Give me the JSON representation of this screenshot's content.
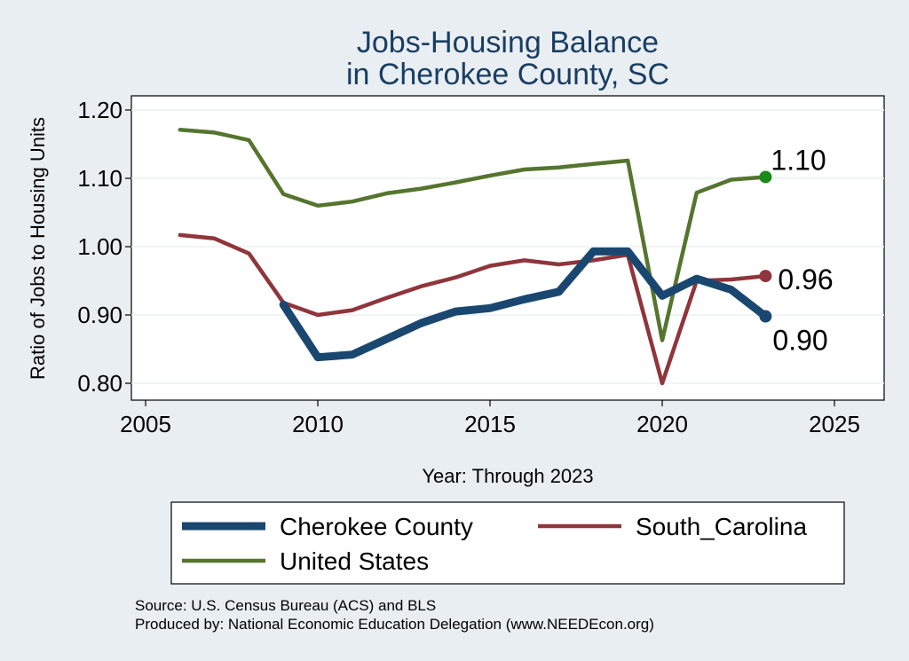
{
  "chart_data": {
    "type": "line",
    "title": [
      "Jobs-Housing Balance",
      "in Cherokee County, SC"
    ],
    "xlabel": "Year: Through 2023",
    "ylabel": "Ratio of Jobs to Housing Units",
    "xlim": [
      2005,
      2027
    ],
    "ylim": [
      0.77,
      1.22
    ],
    "xticks": [
      2005,
      2010,
      2015,
      2020,
      2025
    ],
    "yticks": [
      0.8,
      0.9,
      1.0,
      1.1,
      1.2
    ],
    "ytick_labels": [
      "0.80",
      "0.90",
      "1.00",
      "1.10",
      "1.20"
    ],
    "grid": true,
    "legend_position": "bottom",
    "series": [
      {
        "name": "Cherokee County",
        "color": "#1a476f",
        "x": [
          2009,
          2010,
          2011,
          2012,
          2013,
          2014,
          2015,
          2016,
          2017,
          2018,
          2019,
          2020,
          2021,
          2022,
          2023
        ],
        "values": [
          0.915,
          0.838,
          0.842,
          0.865,
          0.888,
          0.905,
          0.91,
          0.923,
          0.934,
          0.993,
          0.993,
          0.928,
          0.953,
          0.937,
          0.898
        ],
        "end_label": "0.90"
      },
      {
        "name": "South_Carolina",
        "color": "#90353b",
        "x": [
          2006,
          2007,
          2008,
          2009,
          2010,
          2011,
          2012,
          2013,
          2014,
          2015,
          2016,
          2017,
          2018,
          2019,
          2020,
          2021,
          2022,
          2023
        ],
        "values": [
          1.017,
          1.012,
          0.99,
          0.918,
          0.9,
          0.907,
          0.925,
          0.942,
          0.955,
          0.972,
          0.98,
          0.974,
          0.98,
          0.988,
          0.8,
          0.95,
          0.952,
          0.957
        ],
        "end_label": "0.96"
      },
      {
        "name": "United States",
        "color": "#55752f",
        "x": [
          2006,
          2007,
          2008,
          2009,
          2010,
          2011,
          2012,
          2013,
          2014,
          2015,
          2016,
          2017,
          2018,
          2019,
          2020,
          2021,
          2022,
          2023
        ],
        "values": [
          1.171,
          1.167,
          1.156,
          1.077,
          1.06,
          1.066,
          1.078,
          1.085,
          1.094,
          1.104,
          1.113,
          1.116,
          1.121,
          1.126,
          0.863,
          1.079,
          1.098,
          1.102
        ],
        "end_label": "1.10",
        "end_marker_color": "#1a8a1a"
      }
    ],
    "source_lines": [
      "Source: U.S. Census Bureau (ACS) and BLS",
      "Produced by: National Economic Education Delegation (www.NEEDEcon.org)"
    ]
  }
}
